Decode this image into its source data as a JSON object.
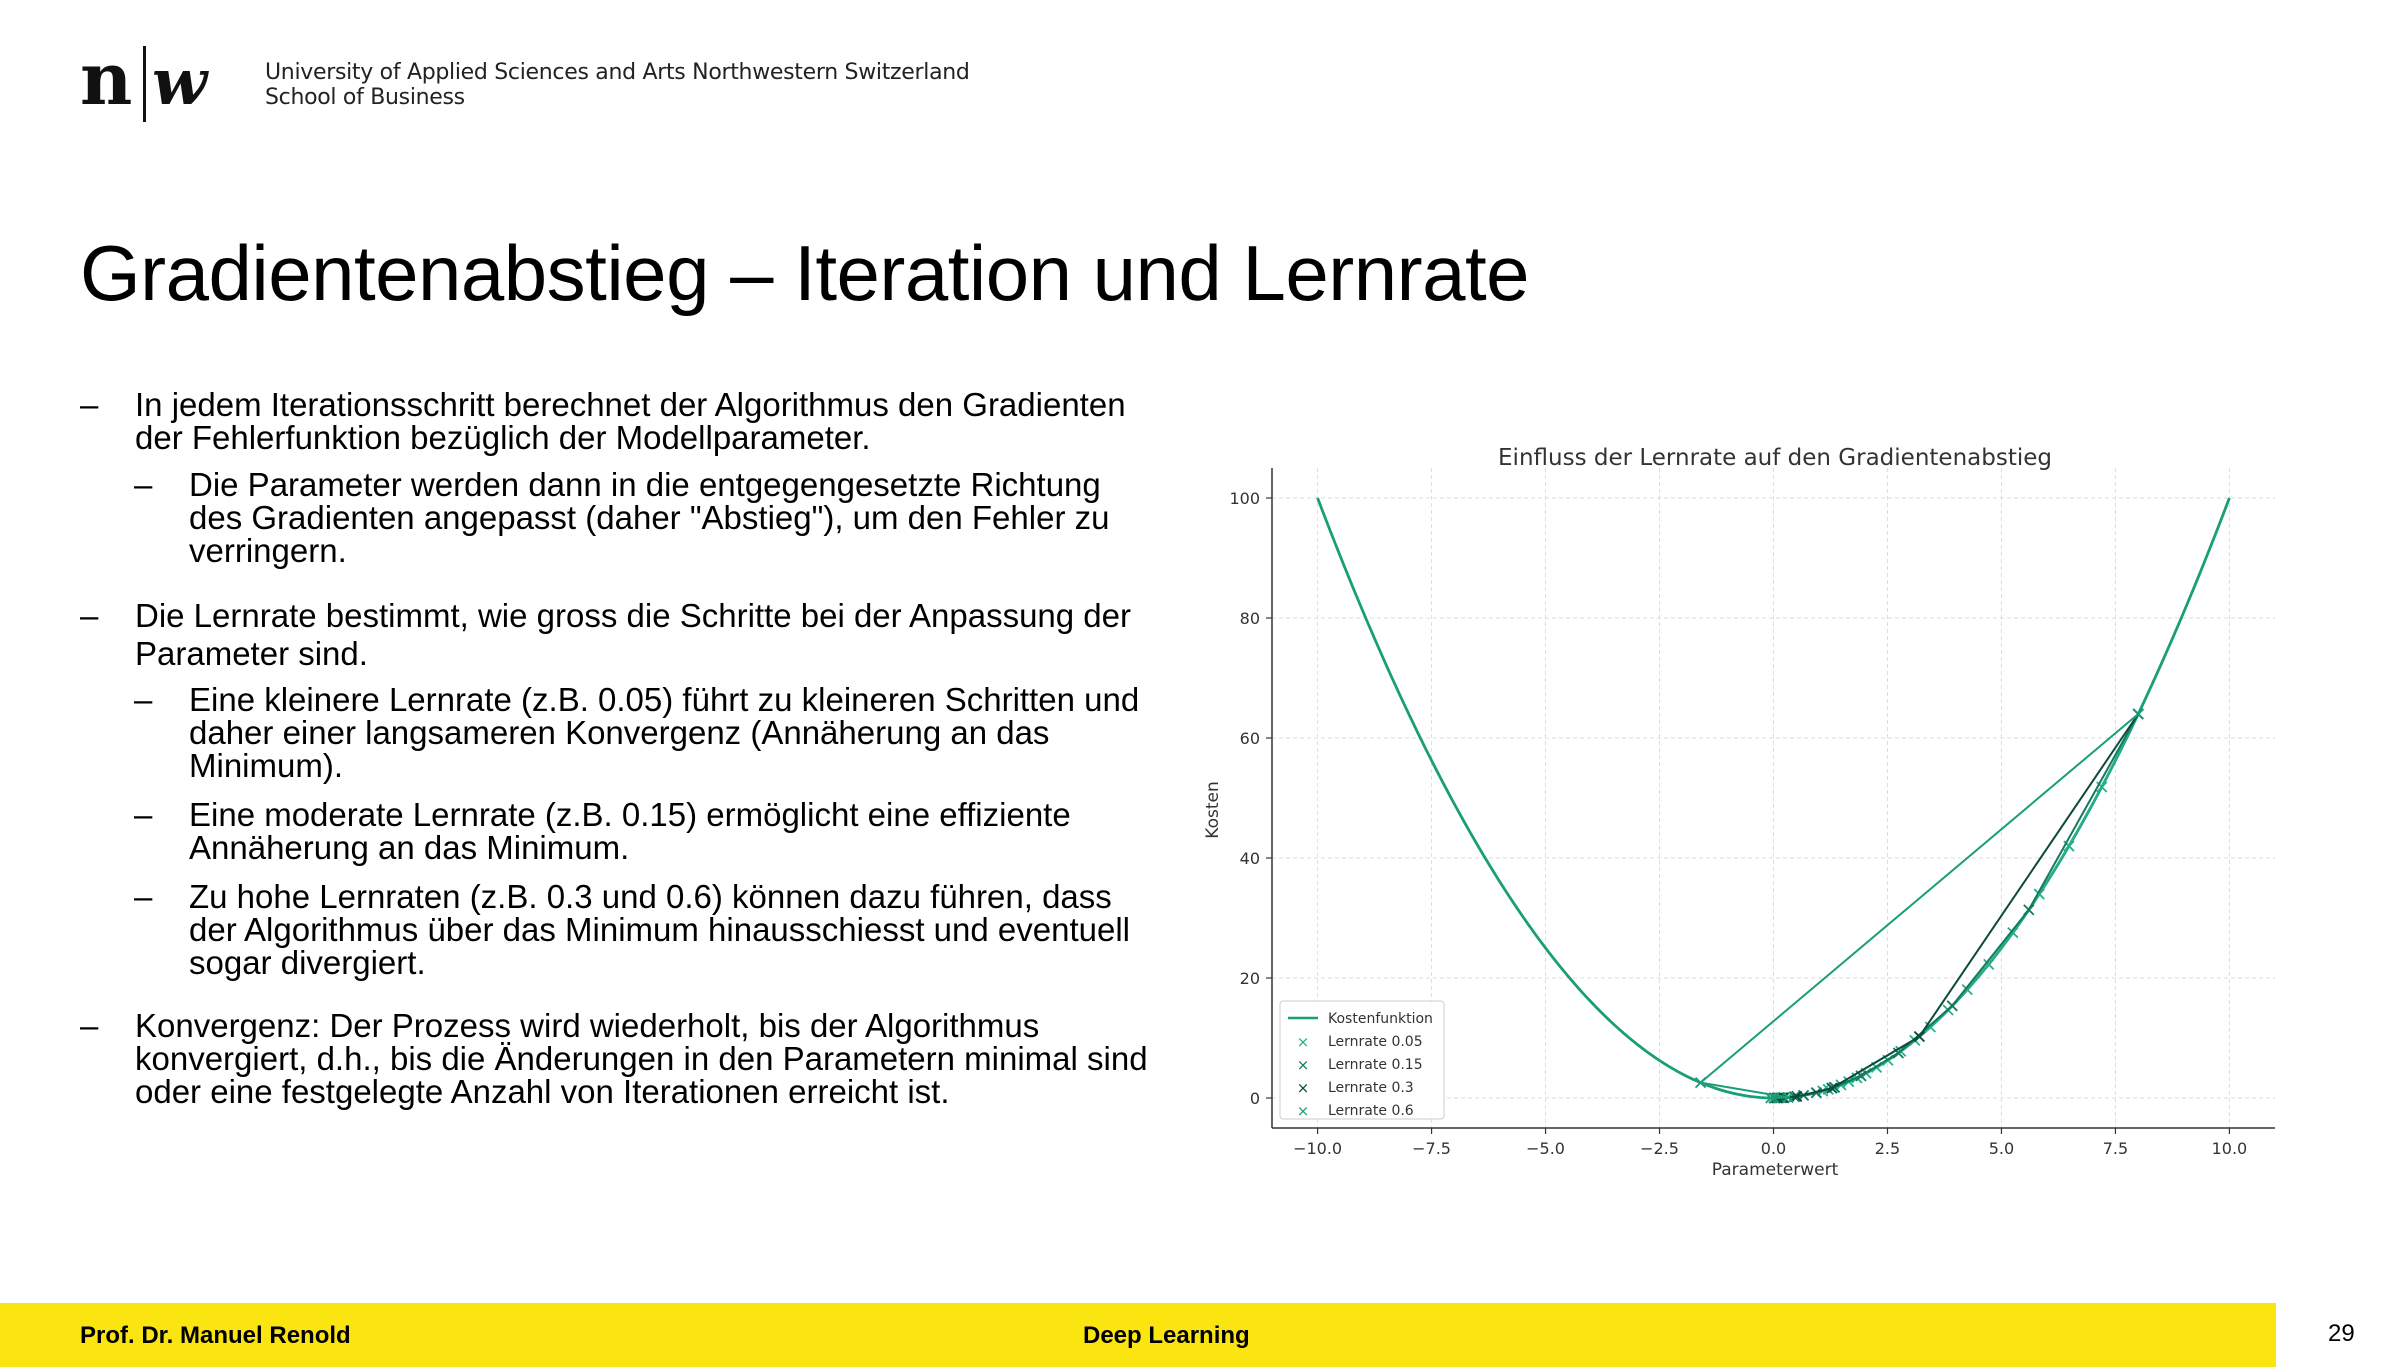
{
  "header": {
    "logo_text": "n|w",
    "institution_line1": "University of Applied Sciences and Arts Northwestern Switzerland",
    "institution_line2": "School of Business"
  },
  "slide": {
    "title": "Gradientenabstieg – Iteration und Lernrate",
    "bullets": [
      {
        "level": 1,
        "dash": "–",
        "text": "In jedem Iterationsschritt berechnet der Algorithmus den Gradienten der Fehlerfunktion bezüglich der Modellparameter."
      },
      {
        "level": 2,
        "dash": "–",
        "text": "Die Parameter werden dann in die entgegengesetzte Richtung des Gradienten angepasst (daher \"Abstieg\"), um den Fehler zu verringern."
      },
      {
        "level": 1,
        "dash": "–",
        "text": "Die Lernrate bestimmt, wie gross die Schritte bei der Anpassung der Parameter sind."
      },
      {
        "level": 2,
        "dash": "–",
        "text": "Eine kleinere Lernrate (z.B. 0.05) führt zu kleineren Schritten und daher einer langsameren Konvergenz (Annäherung an das Minimum)."
      },
      {
        "level": 2,
        "dash": "–",
        "text": "Eine moderate Lernrate (z.B. 0.15) ermöglicht eine effiziente Annäherung an das Minimum."
      },
      {
        "level": 2,
        "dash": "–",
        "text": "Zu hohe Lernraten (z.B. 0.3 und 0.6) können dazu führen, dass der Algorithmus über das Minimum hinausschiesst und eventuell sogar divergiert."
      },
      {
        "level": 1,
        "dash": "–",
        "text": "Konvergenz: Der Prozess wird wiederholt, bis der Algorithmus konvergiert, d.h., bis die Änderungen in den Parametern minimal sind oder eine festgelegte Anzahl von Iterationen erreicht ist."
      }
    ]
  },
  "footer": {
    "author": "Prof. Dr. Manuel Renold",
    "course": "Deep Learning",
    "page_number": "29",
    "bar_color": "#fbe511"
  },
  "chart_data": {
    "type": "line",
    "title": "Einfluss der Lernrate auf den Gradientenabstieg",
    "xlabel": "Parameterwert",
    "ylabel": "Kosten",
    "xlim": [
      -11,
      11
    ],
    "ylim": [
      -5,
      105
    ],
    "xticks": [
      "−10.0",
      "−7.5",
      "−5.0",
      "−2.5",
      "0.0",
      "2.5",
      "5.0",
      "7.5",
      "10.0"
    ],
    "yticks": [
      "0",
      "20",
      "40",
      "60",
      "80",
      "100"
    ],
    "grid": true,
    "legend_position": "lower-left",
    "curve": {
      "name": "Kostenfunktion",
      "function": "x^2",
      "x_range": [
        -10,
        10
      ],
      "color": "#1a9e78"
    },
    "series": [
      {
        "name": "Lernrate 0.05",
        "color": "#23b08a",
        "x": [
          8.0,
          7.2,
          6.48,
          5.83,
          5.25,
          4.72,
          4.25,
          3.83,
          3.44,
          3.1,
          2.79,
          2.51,
          2.26,
          2.03,
          1.83,
          1.65,
          1.48,
          1.33,
          1.2,
          1.08
        ]
      },
      {
        "name": "Lernrate 0.15",
        "color": "#137a5c",
        "x": [
          8.0,
          5.6,
          3.92,
          2.74,
          1.92,
          1.34,
          0.94,
          0.66,
          0.46,
          0.32,
          0.23,
          0.16,
          0.11
        ]
      },
      {
        "name": "Lernrate 0.3",
        "color": "#0d4a3a",
        "x": [
          8.0,
          3.2,
          1.28,
          0.51,
          0.2,
          0.08,
          0.03
        ]
      },
      {
        "name": "Lernrate 0.6",
        "color": "#1a9e78",
        "x": [
          8.0,
          -1.6,
          0.32,
          -0.06,
          0.01
        ]
      }
    ]
  }
}
